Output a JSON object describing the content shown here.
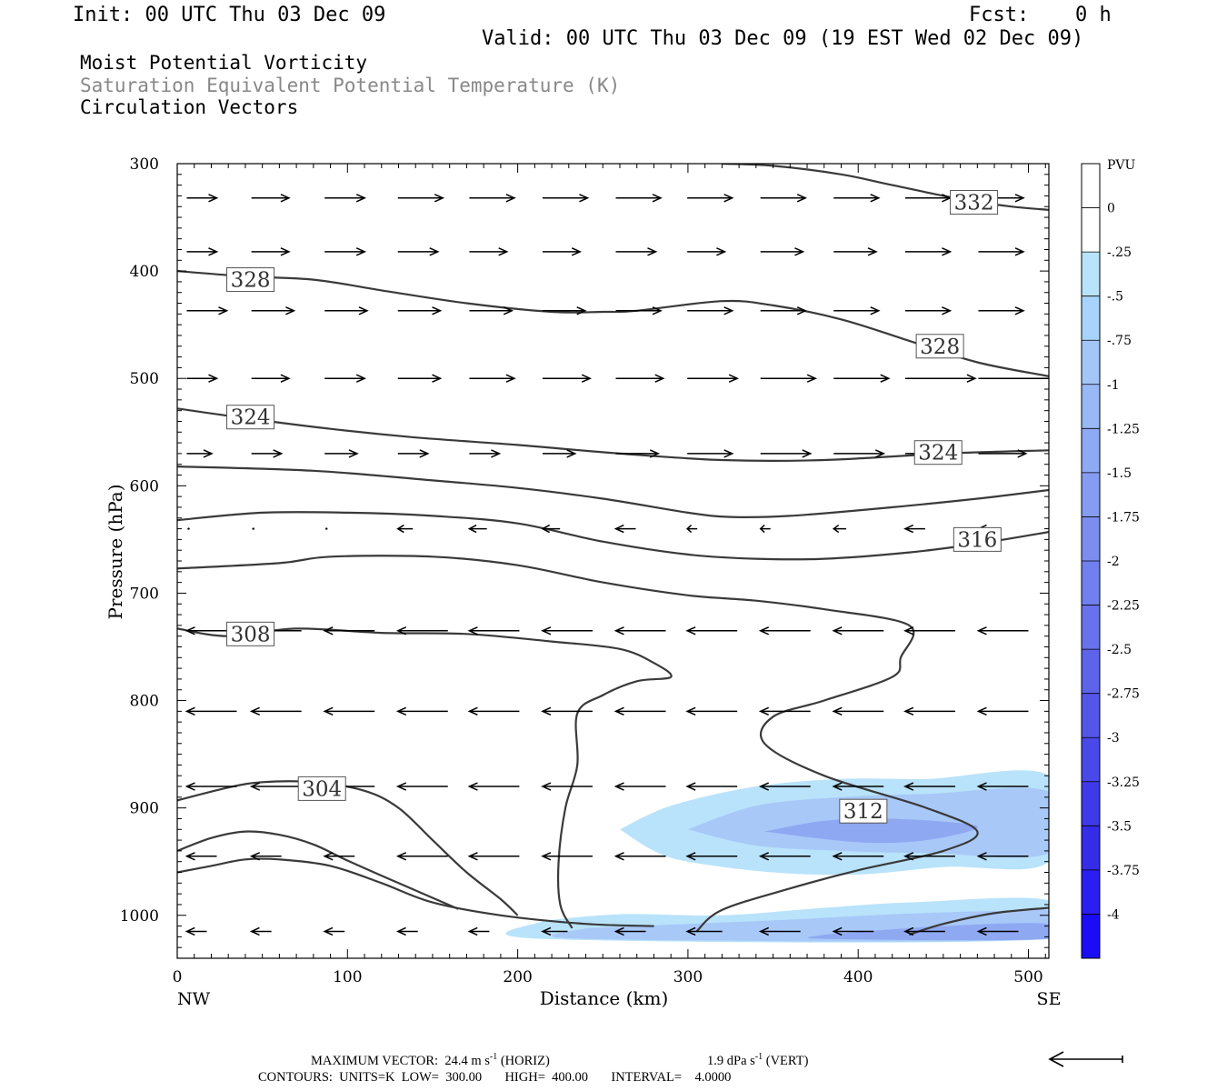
{
  "header": {
    "init": "Init: 00 UTC Thu 03 Dec 09",
    "fcst_label": "Fcst:",
    "fcst_value": "0 h",
    "valid": "Valid: 00 UTC Thu 03 Dec 09 (19 EST Wed 02 Dec 09)"
  },
  "titles": {
    "line1": "Moist Potential Vorticity",
    "line2": "Saturation Equivalent Potential Temperature (K)",
    "line3": "Circulation Vectors"
  },
  "footer": {
    "max_vector_label": "MAXIMUM VECTOR:",
    "max_vector_horiz": "24.4 m s",
    "horiz_tag": "(HORIZ)",
    "max_vector_vert": "1.9 dPa s",
    "vert_tag": "(VERT)",
    "exponent": "-1",
    "contours": "CONTOURS:  UNITS=K  LOW=  300.00       HIGH=  400.00       INTERVAL=    4.0000"
  },
  "colors": {
    "contour": "#3a3a3a",
    "vector": "#000000",
    "pv_light": "#b9e3fb",
    "pv_mid": "#a8c8f8",
    "pv_deep": "#8fa8f2"
  },
  "chart_data": {
    "type": "cross-section",
    "title": "Moist Potential Vorticity",
    "xlabel": "Distance (km)",
    "ylabel": "Pressure (hPa)",
    "xlim": [
      0,
      512
    ],
    "ylim": [
      300,
      1040
    ],
    "x_ticks": [
      0,
      100,
      200,
      300,
      400,
      500
    ],
    "y_ticks": [
      300,
      400,
      500,
      600,
      700,
      800,
      900,
      1000
    ],
    "x_end_labels": {
      "left": "NW",
      "right": "SE"
    },
    "colorbar": {
      "units": "PVU",
      "labels": [
        "0",
        "-.25",
        "-.5",
        "-.75",
        "-1",
        "-1.25",
        "-1.5",
        "-1.75",
        "-2",
        "-2.25",
        "-2.5",
        "-2.75",
        "-3",
        "-3.25",
        "-3.5",
        "-3.75",
        "-4"
      ],
      "colors": [
        "#ffffff",
        "#b9e3fb",
        "#a8d4fb",
        "#a2c6f8",
        "#98b8f6",
        "#8faaf4",
        "#859cf2",
        "#7b8ef0",
        "#7180ee",
        "#6772ec",
        "#5d64ea",
        "#5356e8",
        "#4948e8",
        "#3f3ae8",
        "#352ce8",
        "#2b1ef0",
        "#1a0cf5"
      ]
    },
    "contours": [
      {
        "label": "332",
        "label_at": [
          468,
          336
        ],
        "points": [
          [
            320,
            300
          ],
          [
            350,
            302
          ],
          [
            390,
            310
          ],
          [
            420,
            320
          ],
          [
            460,
            333
          ],
          [
            490,
            340
          ],
          [
            512,
            343
          ]
        ]
      },
      {
        "label": "328",
        "label_at": [
          43,
          408
        ],
        "points": [
          [
            0,
            400
          ],
          [
            40,
            405
          ],
          [
            80,
            408
          ],
          [
            120,
            418
          ],
          [
            170,
            430
          ],
          [
            220,
            438
          ],
          [
            250,
            438
          ],
          [
            270,
            437
          ],
          [
            320,
            428
          ],
          [
            350,
            432
          ],
          [
            390,
            445
          ],
          [
            430,
            465
          ],
          [
            470,
            485
          ],
          [
            512,
            498
          ]
        ]
      },
      {
        "label": "328",
        "label_at": [
          448,
          470
        ],
        "points": []
      },
      {
        "label": "324",
        "label_at": [
          43,
          536
        ],
        "points": [
          [
            0,
            528
          ],
          [
            40,
            537
          ],
          [
            90,
            547
          ],
          [
            140,
            555
          ],
          [
            200,
            562
          ],
          [
            260,
            570
          ],
          [
            320,
            576
          ],
          [
            380,
            576
          ],
          [
            450,
            570
          ],
          [
            512,
            567
          ]
        ]
      },
      {
        "label": "324",
        "label_at": [
          447,
          569
        ],
        "points": []
      },
      {
        "label": "",
        "label_at": null,
        "points": [
          [
            0,
            582
          ],
          [
            80,
            586
          ],
          [
            150,
            595
          ],
          [
            200,
            602
          ],
          [
            250,
            612
          ],
          [
            300,
            625
          ],
          [
            325,
            629
          ],
          [
            360,
            628
          ],
          [
            420,
            620
          ],
          [
            470,
            612
          ],
          [
            512,
            604
          ]
        ]
      },
      {
        "label": "316",
        "label_at": [
          470,
          650
        ],
        "points": [
          [
            0,
            632
          ],
          [
            50,
            625
          ],
          [
            100,
            625
          ],
          [
            150,
            628
          ],
          [
            200,
            635
          ],
          [
            250,
            652
          ],
          [
            300,
            664
          ],
          [
            340,
            668
          ],
          [
            380,
            668
          ],
          [
            430,
            662
          ],
          [
            470,
            654
          ],
          [
            512,
            643
          ]
        ]
      },
      {
        "label": "",
        "label_at": null,
        "points": [
          [
            0,
            677
          ],
          [
            60,
            672
          ],
          [
            90,
            666
          ],
          [
            150,
            666
          ],
          [
            200,
            674
          ],
          [
            250,
            690
          ],
          [
            300,
            702
          ],
          [
            340,
            707
          ],
          [
            380,
            715
          ],
          [
            430,
            730
          ],
          [
            425,
            760
          ],
          [
            420,
            778
          ],
          [
            380,
            800
          ],
          [
            350,
            815
          ],
          [
            345,
            840
          ],
          [
            380,
            870
          ],
          [
            440,
            900
          ],
          [
            470,
            922
          ],
          [
            450,
            940
          ],
          [
            400,
            958
          ],
          [
            360,
            975
          ],
          [
            320,
            995
          ],
          [
            305,
            1015
          ]
        ]
      },
      {
        "label": "308",
        "label_at": [
          43,
          738
        ],
        "points": [
          [
            0,
            733
          ],
          [
            30,
            740
          ],
          [
            70,
            733
          ],
          [
            120,
            737
          ],
          [
            170,
            738
          ],
          [
            220,
            745
          ],
          [
            260,
            752
          ],
          [
            280,
            765
          ],
          [
            290,
            778
          ],
          [
            270,
            782
          ],
          [
            250,
            795
          ],
          [
            235,
            812
          ],
          [
            235,
            860
          ],
          [
            228,
            900
          ],
          [
            224,
            950
          ],
          [
            225,
            990
          ],
          [
            232,
            1012
          ]
        ]
      },
      {
        "label": "312",
        "label_at": [
          403,
          903
        ],
        "points": []
      },
      {
        "label": "304",
        "label_at": [
          85,
          882
        ],
        "points": [
          [
            0,
            893
          ],
          [
            30,
            881
          ],
          [
            50,
            876
          ],
          [
            80,
            876
          ],
          [
            110,
            884
          ],
          [
            130,
            900
          ],
          [
            150,
            930
          ],
          [
            170,
            960
          ],
          [
            190,
            985
          ],
          [
            200,
            1000
          ]
        ]
      },
      {
        "label": "",
        "label_at": null,
        "points": [
          [
            0,
            940
          ],
          [
            20,
            928
          ],
          [
            40,
            922
          ],
          [
            60,
            925
          ],
          [
            80,
            934
          ],
          [
            100,
            949
          ],
          [
            130,
            970
          ],
          [
            165,
            994
          ]
        ]
      },
      {
        "label": "",
        "label_at": null,
        "points": [
          [
            0,
            960
          ],
          [
            20,
            954
          ],
          [
            40,
            948
          ],
          [
            60,
            948
          ],
          [
            90,
            954
          ],
          [
            120,
            970
          ],
          [
            150,
            988
          ],
          [
            190,
            1000
          ],
          [
            240,
            1008
          ],
          [
            280,
            1010
          ]
        ]
      },
      {
        "label": "",
        "label_at": null,
        "points": [
          [
            430,
            1018
          ],
          [
            450,
            1008
          ],
          [
            480,
            998
          ],
          [
            512,
            993
          ]
        ]
      }
    ],
    "shading": [
      {
        "level": "-0.25",
        "points": [
          [
            260,
            920
          ],
          [
            290,
            898
          ],
          [
            340,
            880
          ],
          [
            390,
            873
          ],
          [
            440,
            873
          ],
          [
            512,
            870
          ],
          [
            512,
            950
          ],
          [
            450,
            955
          ],
          [
            400,
            962
          ],
          [
            350,
            960
          ],
          [
            300,
            950
          ],
          [
            280,
            940
          ]
        ]
      },
      {
        "level": "-0.5",
        "points": [
          [
            300,
            920
          ],
          [
            340,
            898
          ],
          [
            390,
            890
          ],
          [
            440,
            887
          ],
          [
            512,
            885
          ],
          [
            512,
            942
          ],
          [
            440,
            942
          ],
          [
            390,
            940
          ],
          [
            340,
            935
          ]
        ]
      },
      {
        "level": "-0.75",
        "points": [
          [
            345,
            922
          ],
          [
            380,
            912
          ],
          [
            420,
            910
          ],
          [
            470,
            917
          ],
          [
            440,
            930
          ],
          [
            400,
            932
          ]
        ]
      },
      {
        "level": "-0.25",
        "points": [
          [
            215,
            1005
          ],
          [
            260,
            999
          ],
          [
            320,
            1000
          ],
          [
            380,
            993
          ],
          [
            430,
            988
          ],
          [
            512,
            986
          ],
          [
            512,
            1022
          ],
          [
            215,
            1022
          ]
        ]
      },
      {
        "level": "-0.5",
        "points": [
          [
            240,
            1012
          ],
          [
            300,
            1008
          ],
          [
            360,
            1004
          ],
          [
            420,
            999
          ],
          [
            480,
            996
          ],
          [
            512,
            996
          ],
          [
            512,
            1022
          ],
          [
            240,
            1022
          ]
        ]
      },
      {
        "level": "-0.75",
        "points": [
          [
            380,
            1018
          ],
          [
            450,
            1010
          ],
          [
            512,
            1008
          ],
          [
            512,
            1022
          ],
          [
            380,
            1022
          ]
        ]
      }
    ],
    "vectors": [
      {
        "p": 332,
        "x": [
          4,
          42,
          85,
          128,
          170,
          213,
          256,
          298,
          341,
          384,
          426,
          469
        ],
        "u": [
          0.6,
          0.75,
          0.8,
          0.9,
          0.9,
          0.9,
          0.9,
          0.9,
          0.9,
          0.9,
          0.9,
          0.9
        ]
      },
      {
        "p": 382,
        "x": [
          4,
          42,
          85,
          128,
          170,
          213,
          256,
          298,
          341,
          384,
          426,
          469
        ],
        "u": [
          0.6,
          0.75,
          0.8,
          0.8,
          0.75,
          0.75,
          0.8,
          0.75,
          0.85,
          0.85,
          0.9,
          0.9
        ]
      },
      {
        "p": 437,
        "x": [
          4,
          42,
          85,
          128,
          170,
          213,
          256,
          298,
          341,
          384,
          426,
          469
        ],
        "u": [
          0.8,
          0.85,
          0.85,
          0.85,
          0.85,
          0.85,
          0.9,
          0.9,
          0.9,
          0.9,
          0.9,
          0.9
        ]
      },
      {
        "p": 500,
        "x": [
          4,
          42,
          85,
          128,
          170,
          213,
          256,
          298,
          341,
          384,
          426,
          469
        ],
        "u": [
          0.6,
          0.75,
          0.8,
          0.85,
          0.9,
          0.95,
          0.95,
          1.0,
          1.1,
          1.1,
          1.4,
          1.6
        ]
      },
      {
        "p": 570,
        "x": [
          4,
          42,
          85,
          128,
          170,
          213,
          256,
          298,
          341,
          384,
          426,
          469
        ],
        "u": [
          0.5,
          0.6,
          0.65,
          0.6,
          0.6,
          0.65,
          0.85,
          0.9,
          1.0,
          1.0,
          0.95,
          0.95
        ]
      },
      {
        "p": 640,
        "x": [
          4,
          42,
          85,
          128,
          170,
          213,
          256,
          298,
          341,
          384,
          426,
          469
        ],
        "u": [
          -0.05,
          -0.05,
          -0.05,
          -0.3,
          -0.35,
          -0.35,
          -0.4,
          -0.2,
          -0.2,
          -0.25,
          -0.4,
          -0.45
        ]
      },
      {
        "p": 735,
        "x": [
          4,
          42,
          85,
          128,
          170,
          213,
          256,
          298,
          341,
          384,
          426,
          469
        ],
        "u": [
          -1.0,
          -1.0,
          -1.0,
          -1.0,
          -1.0,
          -1.0,
          -1.0,
          -1.0,
          -1.0,
          -1.0,
          -1.0,
          -1.0
        ]
      },
      {
        "p": 810,
        "x": [
          4,
          42,
          85,
          128,
          170,
          213,
          256,
          298,
          341,
          384,
          426,
          469
        ],
        "u": [
          -1.0,
          -1.0,
          -1.0,
          -1.0,
          -1.0,
          -1.0,
          -1.0,
          -1.0,
          -1.0,
          -1.0,
          -1.0,
          -1.0
        ]
      },
      {
        "p": 880,
        "x": [
          4,
          42,
          85,
          128,
          170,
          213,
          256,
          298,
          341,
          384,
          426,
          469
        ],
        "u": [
          -1.0,
          -1.0,
          -1.0,
          -1.0,
          -1.0,
          -1.0,
          -1.0,
          -1.0,
          -1.0,
          -1.0,
          -1.0,
          -1.0
        ]
      },
      {
        "p": 945,
        "x": [
          4,
          42,
          85,
          128,
          170,
          213,
          256,
          298,
          341,
          384,
          426,
          469
        ],
        "u": [
          -0.6,
          -0.6,
          -0.6,
          -1.0,
          -1.0,
          -1.0,
          -1.0,
          -1.0,
          -1.0,
          -1.0,
          -1.0,
          -1.0
        ]
      },
      {
        "p": 1015,
        "x": [
          4,
          42,
          85,
          128,
          170,
          213,
          256,
          298,
          341,
          384,
          426,
          469
        ],
        "u": [
          -0.4,
          -0.4,
          -0.4,
          -0.4,
          -0.4,
          -0.5,
          -0.6,
          -0.7,
          -0.8,
          -0.8,
          -0.8,
          -0.8
        ]
      }
    ]
  }
}
